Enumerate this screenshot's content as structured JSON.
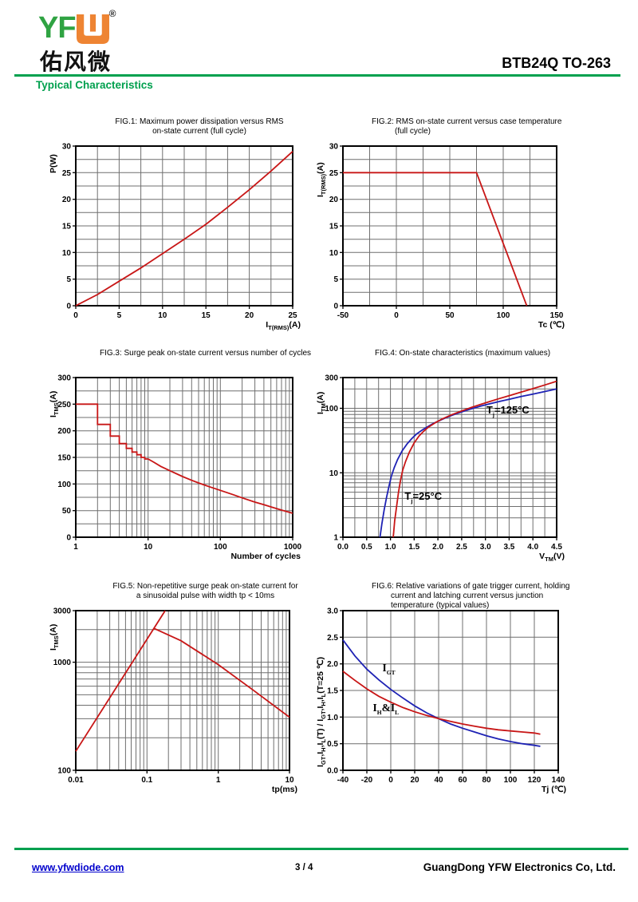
{
  "header": {
    "brand_yf": "YF",
    "brand_registered": "®",
    "brand_chinese": "佑风微",
    "part_number": "BTB24Q TO-263",
    "section_title": "Typical Characteristics"
  },
  "footer": {
    "website": "www.yfwdiode.com",
    "page_indicator": "3 / 4",
    "company": "GuangDong YFW Electronics Co, Ltd."
  },
  "colors": {
    "accent_green": "#00A04E",
    "logo_green": "#2FA342",
    "logo_orange": "#EE8433",
    "curve_red": "#C81616",
    "curve_blue": "#1E22B4",
    "link_blue": "#0000CC"
  },
  "chart_data": [
    {
      "id": "fig1",
      "type": "line",
      "title_lines": [
        "FIG.1: Maximum power dissipation versus RMS",
        "on-state current (full cycle)"
      ],
      "x": {
        "scale": "linear",
        "min": 0,
        "max": 25,
        "grid_step": 2.5,
        "tick_values": [
          0,
          5,
          10,
          15,
          20,
          25
        ],
        "tick_labels": [
          "0",
          "5",
          "10",
          "15",
          "20",
          "25"
        ],
        "label": "I_{T(RMS)}(A)"
      },
      "y": {
        "scale": "linear",
        "min": 0,
        "max": 30,
        "grid_step": 2.5,
        "tick_values": [
          0,
          5,
          10,
          15,
          20,
          25,
          30
        ],
        "tick_labels": [
          "0",
          "5",
          "10",
          "15",
          "20",
          "25",
          "30"
        ],
        "label": "P(W)"
      },
      "series": [
        {
          "name": "max-power-dissipation",
          "color": "#C81616",
          "points": [
            [
              0,
              0
            ],
            [
              2.5,
              2.1
            ],
            [
              5,
              4.6
            ],
            [
              7.5,
              7.1
            ],
            [
              10,
              9.8
            ],
            [
              12.5,
              12.5
            ],
            [
              15,
              15.3
            ],
            [
              17.5,
              18.5
            ],
            [
              20,
              21.8
            ],
            [
              22.5,
              25.3
            ],
            [
              25,
              29
            ]
          ]
        }
      ],
      "annotations": []
    },
    {
      "id": "fig2",
      "type": "line",
      "title_lines": [
        "FIG.2: RMS on-state current versus case temperature",
        "(full cycle)"
      ],
      "x": {
        "scale": "linear",
        "min": -50,
        "max": 150,
        "grid_step": 25,
        "tick_values": [
          -50,
          0,
          50,
          100,
          150
        ],
        "tick_labels": [
          "-50",
          "0",
          "50",
          "100",
          "150"
        ],
        "label": "Tc (℃)"
      },
      "y": {
        "scale": "linear",
        "min": 0,
        "max": 30,
        "grid_step": 2.5,
        "tick_values": [
          0,
          5,
          10,
          15,
          20,
          25,
          30
        ],
        "tick_labels": [
          "0",
          "5",
          "10",
          "15",
          "20",
          "25",
          "30"
        ],
        "label": "I_{T(RMS)}(A)"
      },
      "series": [
        {
          "name": "rms-on-state-current",
          "color": "#C81616",
          "points": [
            [
              -50,
              25
            ],
            [
              75,
              25
            ],
            [
              122,
              0
            ]
          ]
        }
      ],
      "annotations": []
    },
    {
      "id": "fig3",
      "type": "line",
      "title_lines": [
        "FIG.3: Surge peak on-state current versus number of cycles"
      ],
      "x": {
        "scale": "log",
        "min": 1,
        "max": 1000,
        "tick_values": [
          1,
          10,
          100,
          1000
        ],
        "tick_labels": [
          "1",
          "10",
          "100",
          "1000"
        ],
        "label": "Number of cycles"
      },
      "y": {
        "scale": "linear",
        "min": 0,
        "max": 300,
        "grid_step": 25,
        "tick_values": [
          0,
          50,
          100,
          150,
          200,
          250,
          300
        ],
        "tick_labels": [
          "0",
          "50",
          "100",
          "150",
          "200",
          "250",
          "300"
        ],
        "label": "I_{TMS}(A)"
      },
      "series": [
        {
          "name": "surge-peak-current",
          "color": "#C81616",
          "points": [
            [
              1,
              250
            ],
            [
              2,
              250
            ],
            [
              2,
              212
            ],
            [
              3,
              212
            ],
            [
              3,
              190
            ],
            [
              4,
              190
            ],
            [
              4,
              176
            ],
            [
              5,
              176
            ],
            [
              5,
              167
            ],
            [
              6,
              167
            ],
            [
              6,
              160
            ],
            [
              7,
              160
            ],
            [
              7,
              155
            ],
            [
              8,
              155
            ],
            [
              8,
              150
            ],
            [
              9,
              150
            ],
            [
              9,
              147
            ],
            [
              10,
              147
            ],
            [
              12,
              141
            ],
            [
              15,
              133
            ],
            [
              20,
              125
            ],
            [
              30,
              114
            ],
            [
              40,
              107
            ],
            [
              50,
              102
            ],
            [
              70,
              95
            ],
            [
              100,
              88
            ],
            [
              150,
              80
            ],
            [
              200,
              74
            ],
            [
              300,
              66
            ],
            [
              400,
              61
            ],
            [
              500,
              57
            ],
            [
              700,
              51
            ],
            [
              1000,
              45
            ]
          ]
        }
      ],
      "annotations": []
    },
    {
      "id": "fig4",
      "type": "line",
      "title_lines": [
        "FIG.4: On-state characteristics (maximum values)"
      ],
      "x": {
        "scale": "linear",
        "min": 0,
        "max": 4.5,
        "grid_step": 0.25,
        "tick_values": [
          0,
          0.5,
          1,
          1.5,
          2,
          2.5,
          3,
          3.5,
          4,
          4.5
        ],
        "tick_labels": [
          "0.0",
          "0.5",
          "1.0",
          "1.5",
          "2.0",
          "2.5",
          "3.0",
          "3.5",
          "4.0",
          "4.5"
        ],
        "label": "V_{TM}(V)"
      },
      "y": {
        "scale": "log",
        "min": 1,
        "max": 300,
        "tick_values": [
          1,
          10,
          100,
          300
        ],
        "tick_labels": [
          "1",
          "10",
          "100",
          "300"
        ],
        "label": "I_{TM}(A)"
      },
      "series": [
        {
          "name": "Tj=125C",
          "color": "#1E22B4",
          "points": [
            [
              0.78,
              1
            ],
            [
              0.82,
              1.6
            ],
            [
              0.87,
              2.7
            ],
            [
              0.92,
              4.2
            ],
            [
              0.97,
              6.2
            ],
            [
              1.02,
              8.8
            ],
            [
              1.08,
              12
            ],
            [
              1.15,
              16
            ],
            [
              1.25,
              22
            ],
            [
              1.35,
              28
            ],
            [
              1.45,
              34
            ],
            [
              1.55,
              40
            ],
            [
              1.65,
              45
            ],
            [
              1.75,
              50
            ],
            [
              1.9,
              58
            ],
            [
              2.1,
              68
            ],
            [
              2.3,
              78
            ],
            [
              2.5,
              88
            ],
            [
              2.7,
              98
            ],
            [
              2.9,
              108
            ],
            [
              3.1,
              118
            ],
            [
              3.3,
              128
            ],
            [
              3.5,
              138
            ],
            [
              3.75,
              152
            ],
            [
              4,
              166
            ],
            [
              4.25,
              182
            ],
            [
              4.5,
              200
            ]
          ]
        },
        {
          "name": "Tj=25C",
          "color": "#C81616",
          "points": [
            [
              1.06,
              1
            ],
            [
              1.09,
              1.8
            ],
            [
              1.13,
              3
            ],
            [
              1.17,
              5
            ],
            [
              1.21,
              7.5
            ],
            [
              1.26,
              11
            ],
            [
              1.32,
              15
            ],
            [
              1.4,
              21
            ],
            [
              1.5,
              29
            ],
            [
              1.6,
              37
            ],
            [
              1.7,
              44
            ],
            [
              1.8,
              51
            ],
            [
              1.95,
              60
            ],
            [
              2.1,
              69
            ],
            [
              2.3,
              80
            ],
            [
              2.5,
              91
            ],
            [
              2.7,
              103
            ],
            [
              2.9,
              115
            ],
            [
              3.1,
              128
            ],
            [
              3.3,
              142
            ],
            [
              3.5,
              157
            ],
            [
              3.75,
              178
            ],
            [
              4,
              202
            ],
            [
              4.25,
              230
            ],
            [
              4.5,
              263
            ]
          ]
        }
      ],
      "annotations": [
        {
          "text": "T_{j}=125°C",
          "x": 3.02,
          "y": 90
        },
        {
          "text": "T_{j}=25°C",
          "x": 1.3,
          "y": 4.2
        }
      ]
    },
    {
      "id": "fig5",
      "type": "line",
      "title_lines": [
        "FIG.5: Non-repetitive surge peak on-state current for",
        "a sinusoidal pulse with width tp < 10ms"
      ],
      "x": {
        "scale": "log",
        "min": 0.01,
        "max": 10,
        "tick_values": [
          0.01,
          0.1,
          1,
          10
        ],
        "tick_labels": [
          "0.01",
          "0.1",
          "1",
          "10"
        ],
        "label": "tp(ms)"
      },
      "y": {
        "scale": "log",
        "min": 100,
        "max": 3000,
        "tick_values": [
          100,
          1000,
          3000
        ],
        "tick_labels": [
          "100",
          "1000",
          "3000"
        ],
        "label": "I_{TMS}(A)"
      },
      "series": [
        {
          "name": "rising-branch",
          "color": "#C81616",
          "points": [
            [
              0.01,
              150
            ],
            [
              0.18,
              3000
            ]
          ]
        },
        {
          "name": "falling-branch",
          "color": "#C81616",
          "points": [
            [
              0.125,
              2056
            ],
            [
              0.3,
              1580
            ],
            [
              1,
              950
            ],
            [
              3,
              560
            ],
            [
              10,
              310
            ]
          ]
        }
      ],
      "annotations": []
    },
    {
      "id": "fig6",
      "type": "line",
      "title_lines": [
        "FIG.6: Relative variations of gate trigger current, holding",
        "current and latching current versus junction",
        "temperature (typical values)"
      ],
      "x": {
        "scale": "linear",
        "min": -40,
        "max": 140,
        "grid_step": 20,
        "tick_values": [
          -40,
          -20,
          0,
          20,
          40,
          60,
          80,
          100,
          120,
          140
        ],
        "tick_labels": [
          "-40",
          "-20",
          "0",
          "20",
          "40",
          "60",
          "80",
          "100",
          "120",
          "140"
        ],
        "label": "Tj (℃)"
      },
      "y": {
        "scale": "linear",
        "min": 0,
        "max": 3,
        "grid_step": 0.5,
        "tick_values": [
          0,
          0.5,
          1,
          1.5,
          2,
          2.5,
          3
        ],
        "tick_labels": [
          "0.0",
          "0.5",
          "1.0",
          "1.5",
          "2.0",
          "2.5",
          "3.0"
        ],
        "label": "I_{GT},I_{H},I_{L}(T) / I_{GT},I_{H},I_{L}(T=25 ℃)"
      },
      "series": [
        {
          "name": "IGT",
          "color": "#1E22B4",
          "points": [
            [
              -40,
              2.45
            ],
            [
              -30,
              2.15
            ],
            [
              -20,
              1.9
            ],
            [
              -10,
              1.7
            ],
            [
              0,
              1.52
            ],
            [
              10,
              1.36
            ],
            [
              20,
              1.21
            ],
            [
              30,
              1.08
            ],
            [
              40,
              0.97
            ],
            [
              50,
              0.87
            ],
            [
              60,
              0.79
            ],
            [
              70,
              0.72
            ],
            [
              80,
              0.65
            ],
            [
              90,
              0.59
            ],
            [
              100,
              0.54
            ],
            [
              110,
              0.5
            ],
            [
              120,
              0.47
            ],
            [
              125,
              0.45
            ]
          ]
        },
        {
          "name": "IH&IL",
          "color": "#C81616",
          "points": [
            [
              -40,
              1.86
            ],
            [
              -30,
              1.69
            ],
            [
              -20,
              1.53
            ],
            [
              -10,
              1.39
            ],
            [
              0,
              1.28
            ],
            [
              10,
              1.18
            ],
            [
              20,
              1.1
            ],
            [
              30,
              1.03
            ],
            [
              40,
              0.97
            ],
            [
              50,
              0.92
            ],
            [
              60,
              0.87
            ],
            [
              70,
              0.83
            ],
            [
              80,
              0.79
            ],
            [
              90,
              0.76
            ],
            [
              100,
              0.74
            ],
            [
              110,
              0.72
            ],
            [
              120,
              0.7
            ],
            [
              125,
              0.68
            ]
          ]
        }
      ],
      "annotations": [
        {
          "text": "I_{GT}",
          "x": -7,
          "y": 1.9
        },
        {
          "text": "I_{H}&I_{L}",
          "x": -15,
          "y": 1.15
        }
      ]
    }
  ]
}
